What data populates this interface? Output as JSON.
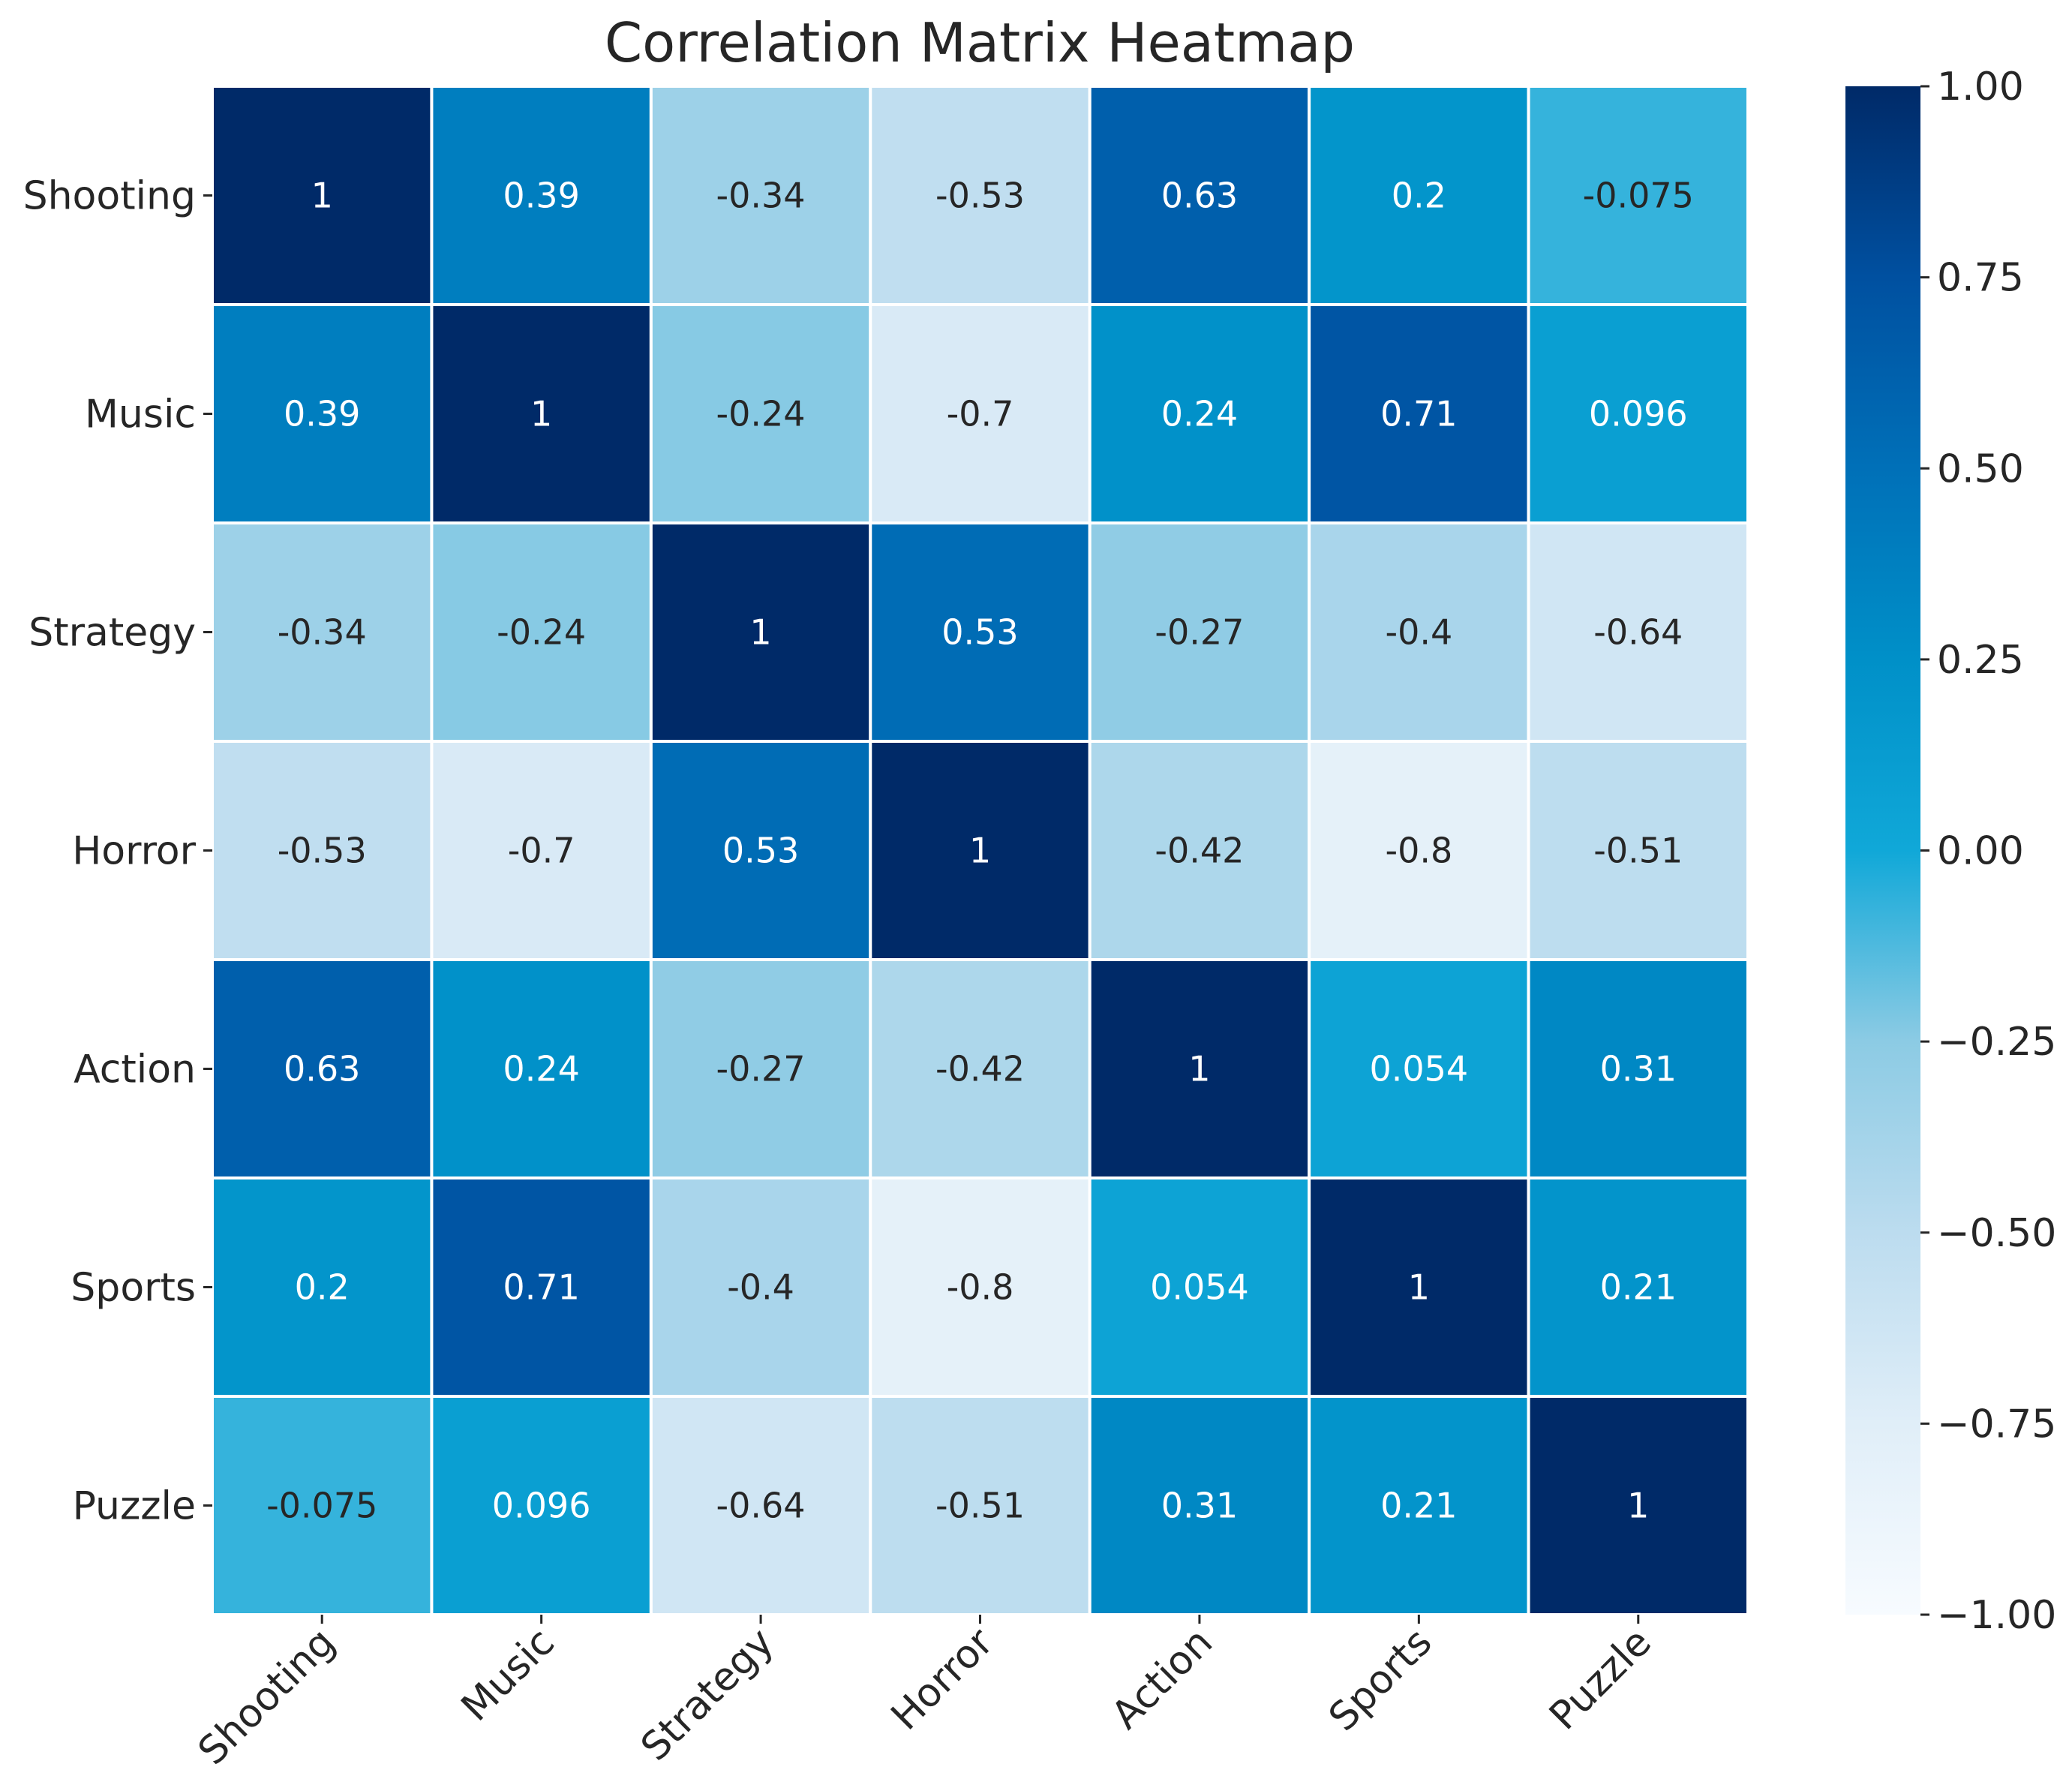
{
  "chart_data": {
    "type": "heatmap",
    "title": "Correlation Matrix Heatmap",
    "xlabel": "",
    "ylabel": "",
    "x_categories": [
      "Shooting",
      "Music",
      "Strategy",
      "Horror",
      "Action",
      "Sports",
      "Puzzle"
    ],
    "y_categories": [
      "Shooting",
      "Music",
      "Strategy",
      "Horror",
      "Action",
      "Sports",
      "Puzzle"
    ],
    "values": [
      [
        1,
        0.39,
        -0.34,
        -0.53,
        0.63,
        0.2,
        -0.075
      ],
      [
        0.39,
        1,
        -0.24,
        -0.7,
        0.24,
        0.71,
        0.096
      ],
      [
        -0.34,
        -0.24,
        1,
        0.53,
        -0.27,
        -0.4,
        -0.64
      ],
      [
        -0.53,
        -0.7,
        0.53,
        1,
        -0.42,
        -0.8,
        -0.51
      ],
      [
        0.63,
        0.24,
        -0.27,
        -0.42,
        1,
        0.054,
        0.31
      ],
      [
        0.2,
        0.71,
        -0.4,
        -0.8,
        0.054,
        1,
        0.21
      ],
      [
        -0.075,
        0.096,
        -0.64,
        -0.51,
        0.31,
        0.21,
        1
      ]
    ],
    "annotations": [
      [
        "1",
        "0.39",
        "-0.34",
        "-0.53",
        "0.63",
        "0.2",
        "-0.075"
      ],
      [
        "0.39",
        "1",
        "-0.24",
        "-0.7",
        "0.24",
        "0.71",
        "0.096"
      ],
      [
        "-0.34",
        "-0.24",
        "1",
        "0.53",
        "-0.27",
        "-0.4",
        "-0.64"
      ],
      [
        "-0.53",
        "-0.7",
        "0.53",
        "1",
        "-0.42",
        "-0.8",
        "-0.51"
      ],
      [
        "0.63",
        "0.24",
        "-0.27",
        "-0.42",
        "1",
        "0.054",
        "0.31"
      ],
      [
        "0.2",
        "0.71",
        "-0.4",
        "-0.8",
        "0.054",
        "1",
        "0.21"
      ],
      [
        "-0.075",
        "0.096",
        "-0.64",
        "-0.51",
        "0.31",
        "0.21",
        "1"
      ]
    ],
    "colormap": "Blues",
    "vmin": -1,
    "vmax": 1,
    "colorbar_ticks": [
      1.0,
      0.75,
      0.5,
      0.25,
      0.0,
      -0.25,
      -0.5,
      -0.75,
      -1.0
    ],
    "colorbar_tick_labels": [
      "1.00",
      "0.75",
      "0.50",
      "0.25",
      "0.00",
      "−0.25",
      "−0.50",
      "−0.75",
      "−1.00"
    ],
    "colors": {
      "low": "#f7fbff",
      "mid": "#10a8d8",
      "high": "#002a68",
      "text_dark": "#262626",
      "text_light": "#ffffff",
      "gridline": "#ffffff"
    },
    "colorbar_position": "right",
    "grid": false
  }
}
